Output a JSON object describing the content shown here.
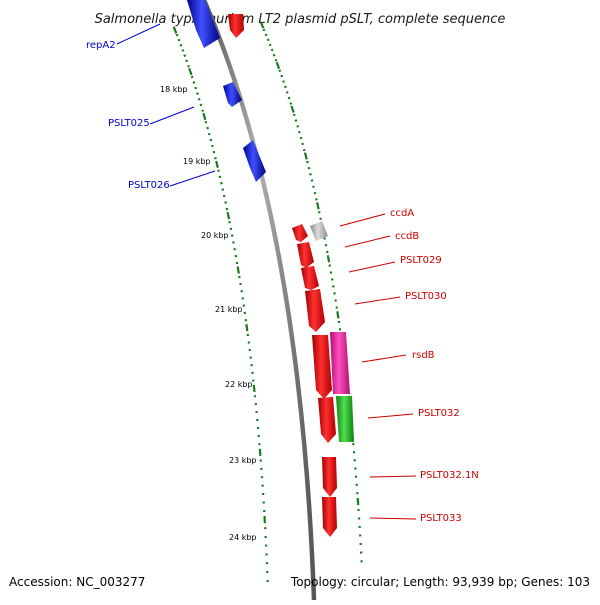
{
  "title": "Salmonella typhimurium LT2 plasmid pSLT, complete sequence",
  "accession": "Accession: NC_003277",
  "topology": "Topology: circular; Length: 93,939 bp; Genes: 103",
  "kbp_labels": [
    "18 kbp",
    "19 kbp",
    "20 kbp",
    "21 kbp",
    "22 kbp",
    "23 kbp",
    "24 kbp"
  ],
  "colors": {
    "backbone": "#7a7a7a",
    "tick": "#1a7a1a",
    "blue_gene": "#1010e0",
    "red_gene": "#ee0000",
    "gray_gene": "#b8b8b8",
    "pink_gene": "#f020a0",
    "green_gene": "#20c020",
    "blue_label": "#0000cc",
    "red_label": "#cc0000"
  },
  "genes_left": [
    {
      "name": "repA2",
      "color": "blue_gene"
    },
    {
      "name": "PSLT025",
      "color": "blue_gene"
    },
    {
      "name": "PSLT026",
      "color": "blue_gene"
    }
  ],
  "genes_right": [
    {
      "name": "ccdA",
      "color": "gray_gene"
    },
    {
      "name": "ccdB",
      "color": "red_gene"
    },
    {
      "name": "PSLT029",
      "color": "red_gene"
    },
    {
      "name": "PSLT030",
      "color": "red_gene"
    },
    {
      "name": "rsdB",
      "color": "pink_gene"
    },
    {
      "name": "PSLT032",
      "color": "green_gene"
    },
    {
      "name": "PSLT032.1N",
      "color": "red_gene"
    },
    {
      "name": "PSLT033",
      "color": "red_gene"
    }
  ]
}
